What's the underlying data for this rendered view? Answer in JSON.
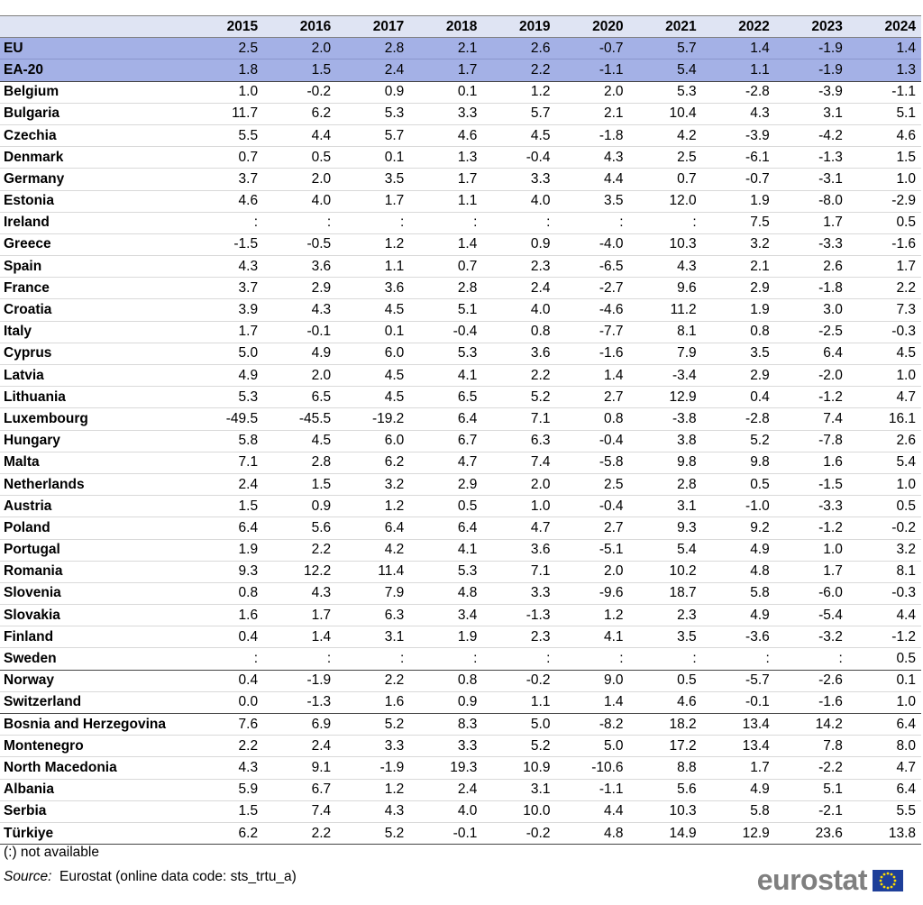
{
  "table": {
    "columns": [
      "2015",
      "2016",
      "2017",
      "2018",
      "2019",
      "2020",
      "2021",
      "2022",
      "2023",
      "2024"
    ],
    "groups": [
      {
        "rows": [
          [
            "EU",
            "2.5",
            "2.0",
            "2.8",
            "2.1",
            "2.6",
            "-0.7",
            "5.7",
            "1.4",
            "-1.9",
            "1.4"
          ],
          [
            "EA-20",
            "1.8",
            "1.5",
            "2.4",
            "1.7",
            "2.2",
            "-1.1",
            "5.4",
            "1.1",
            "-1.9",
            "1.3"
          ]
        ]
      },
      {
        "rows": [
          [
            "Belgium",
            "1.0",
            "-0.2",
            "0.9",
            "0.1",
            "1.2",
            "2.0",
            "5.3",
            "-2.8",
            "-3.9",
            "-1.1"
          ],
          [
            "Bulgaria",
            "11.7",
            "6.2",
            "5.3",
            "3.3",
            "5.7",
            "2.1",
            "10.4",
            "4.3",
            "3.1",
            "5.1"
          ],
          [
            "Czechia",
            "5.5",
            "4.4",
            "5.7",
            "4.6",
            "4.5",
            "-1.8",
            "4.2",
            "-3.9",
            "-4.2",
            "4.6"
          ],
          [
            "Denmark",
            "0.7",
            "0.5",
            "0.1",
            "1.3",
            "-0.4",
            "4.3",
            "2.5",
            "-6.1",
            "-1.3",
            "1.5"
          ],
          [
            "Germany",
            "3.7",
            "2.0",
            "3.5",
            "1.7",
            "3.3",
            "4.4",
            "0.7",
            "-0.7",
            "-3.1",
            "1.0"
          ],
          [
            "Estonia",
            "4.6",
            "4.0",
            "1.7",
            "1.1",
            "4.0",
            "3.5",
            "12.0",
            "1.9",
            "-8.0",
            "-2.9"
          ],
          [
            "Ireland",
            ":",
            ":",
            ":",
            ":",
            ":",
            ":",
            ":",
            "7.5",
            "1.7",
            "0.5"
          ],
          [
            "Greece",
            "-1.5",
            "-0.5",
            "1.2",
            "1.4",
            "0.9",
            "-4.0",
            "10.3",
            "3.2",
            "-3.3",
            "-1.6"
          ],
          [
            "Spain",
            "4.3",
            "3.6",
            "1.1",
            "0.7",
            "2.3",
            "-6.5",
            "4.3",
            "2.1",
            "2.6",
            "1.7"
          ],
          [
            "France",
            "3.7",
            "2.9",
            "3.6",
            "2.8",
            "2.4",
            "-2.7",
            "9.6",
            "2.9",
            "-1.8",
            "2.2"
          ],
          [
            "Croatia",
            "3.9",
            "4.3",
            "4.5",
            "5.1",
            "4.0",
            "-4.6",
            "11.2",
            "1.9",
            "3.0",
            "7.3"
          ],
          [
            "Italy",
            "1.7",
            "-0.1",
            "0.1",
            "-0.4",
            "0.8",
            "-7.7",
            "8.1",
            "0.8",
            "-2.5",
            "-0.3"
          ],
          [
            "Cyprus",
            "5.0",
            "4.9",
            "6.0",
            "5.3",
            "3.6",
            "-1.6",
            "7.9",
            "3.5",
            "6.4",
            "4.5"
          ],
          [
            "Latvia",
            "4.9",
            "2.0",
            "4.5",
            "4.1",
            "2.2",
            "1.4",
            "-3.4",
            "2.9",
            "-2.0",
            "1.0"
          ],
          [
            "Lithuania",
            "5.3",
            "6.5",
            "4.5",
            "6.5",
            "5.2",
            "2.7",
            "12.9",
            "0.4",
            "-1.2",
            "4.7"
          ],
          [
            "Luxembourg",
            "-49.5",
            "-45.5",
            "-19.2",
            "6.4",
            "7.1",
            "0.8",
            "-3.8",
            "-2.8",
            "7.4",
            "16.1"
          ],
          [
            "Hungary",
            "5.8",
            "4.5",
            "6.0",
            "6.7",
            "6.3",
            "-0.4",
            "3.8",
            "5.2",
            "-7.8",
            "2.6"
          ],
          [
            "Malta",
            "7.1",
            "2.8",
            "6.2",
            "4.7",
            "7.4",
            "-5.8",
            "9.8",
            "9.8",
            "1.6",
            "5.4"
          ],
          [
            "Netherlands",
            "2.4",
            "1.5",
            "3.2",
            "2.9",
            "2.0",
            "2.5",
            "2.8",
            "0.5",
            "-1.5",
            "1.0"
          ],
          [
            "Austria",
            "1.5",
            "0.9",
            "1.2",
            "0.5",
            "1.0",
            "-0.4",
            "3.1",
            "-1.0",
            "-3.3",
            "0.5"
          ],
          [
            "Poland",
            "6.4",
            "5.6",
            "6.4",
            "6.4",
            "4.7",
            "2.7",
            "9.3",
            "9.2",
            "-1.2",
            "-0.2"
          ],
          [
            "Portugal",
            "1.9",
            "2.2",
            "4.2",
            "4.1",
            "3.6",
            "-5.1",
            "5.4",
            "4.9",
            "1.0",
            "3.2"
          ],
          [
            "Romania",
            "9.3",
            "12.2",
            "11.4",
            "5.3",
            "7.1",
            "2.0",
            "10.2",
            "4.8",
            "1.7",
            "8.1"
          ],
          [
            "Slovenia",
            "0.8",
            "4.3",
            "7.9",
            "4.8",
            "3.3",
            "-9.6",
            "18.7",
            "5.8",
            "-6.0",
            "-0.3"
          ],
          [
            "Slovakia",
            "1.6",
            "1.7",
            "6.3",
            "3.4",
            "-1.3",
            "1.2",
            "2.3",
            "4.9",
            "-5.4",
            "4.4"
          ],
          [
            "Finland",
            "0.4",
            "1.4",
            "3.1",
            "1.9",
            "2.3",
            "4.1",
            "3.5",
            "-3.6",
            "-3.2",
            "-1.2"
          ],
          [
            "Sweden",
            ":",
            ":",
            ":",
            ":",
            ":",
            ":",
            ":",
            ":",
            ":",
            "0.5"
          ]
        ]
      },
      {
        "rows": [
          [
            "Norway",
            "0.4",
            "-1.9",
            "2.2",
            "0.8",
            "-0.2",
            "9.0",
            "0.5",
            "-5.7",
            "-2.6",
            "0.1"
          ],
          [
            "Switzerland",
            "0.0",
            "-1.3",
            "1.6",
            "0.9",
            "1.1",
            "1.4",
            "4.6",
            "-0.1",
            "-1.6",
            "1.0"
          ]
        ]
      },
      {
        "rows": [
          [
            "Bosnia and Herzegovina",
            "7.6",
            "6.9",
            "5.2",
            "8.3",
            "5.0",
            "-8.2",
            "18.2",
            "13.4",
            "14.2",
            "6.4"
          ],
          [
            "Montenegro",
            "2.2",
            "2.4",
            "3.3",
            "3.3",
            "5.2",
            "5.0",
            "17.2",
            "13.4",
            "7.8",
            "8.0"
          ],
          [
            "North Macedonia",
            "4.3",
            "9.1",
            "-1.9",
            "19.3",
            "10.9",
            "-10.6",
            "8.8",
            "1.7",
            "-2.2",
            "4.7"
          ],
          [
            "Albania",
            "5.9",
            "6.7",
            "1.2",
            "2.4",
            "3.1",
            "-1.1",
            "5.6",
            "4.9",
            "5.1",
            "6.4"
          ],
          [
            "Serbia",
            "1.5",
            "7.4",
            "4.3",
            "4.0",
            "10.0",
            "4.4",
            "10.3",
            "5.8",
            "-2.1",
            "5.5"
          ],
          [
            "Türkiye",
            "6.2",
            "2.2",
            "5.2",
            "-0.1",
            "-0.2",
            "4.8",
            "14.9",
            "12.9",
            "23.6",
            "13.8"
          ]
        ]
      }
    ]
  },
  "footer": {
    "note": "(:) not available",
    "source_label": "Source:",
    "source_text": "Eurostat (online data code: sts_trtu_a)",
    "logo": "eurostat"
  }
}
